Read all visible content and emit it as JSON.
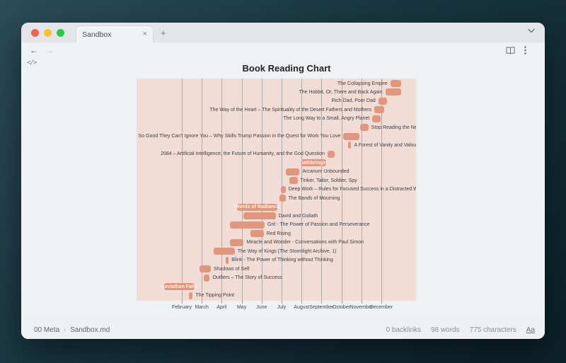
{
  "window": {
    "tab": {
      "title": "Sandbox"
    },
    "icons": {
      "tab_close": "×",
      "new_tab": "+",
      "back_arrow": "←",
      "forward_arrow": "→",
      "code_toggle": "</>",
      "breadcrumb_separator": "›"
    },
    "statusbar": {
      "breadcrumb_root": "00 Meta",
      "breadcrumb_file": "Sandbox.md",
      "backlinks": "0 backlinks",
      "words": "98 words",
      "characters": "775 characters",
      "font_toggle": "Aa"
    }
  },
  "chart_data": {
    "type": "gantt",
    "title": "Book Reading Chart",
    "time_unit": "months_since_jan_1",
    "axis": {
      "months": [
        "February",
        "March",
        "April",
        "May",
        "June",
        "July",
        "August",
        "September",
        "October",
        "November",
        "December"
      ],
      "range_months": [
        0,
        12.2
      ],
      "grid": true
    },
    "colors": {
      "bar": "#e1977d",
      "plot_background": "#f2ddd6",
      "label": "#3e4148",
      "inside_label": "#fdf1ec",
      "gridline": "#9a9ba0"
    },
    "books": [
      {
        "title": "The Collapsing Empire",
        "start": 11.45,
        "end": 12.0,
        "label_position": "left"
      },
      {
        "title": "The Hobbit, Or, There and Back Again",
        "start": 11.2,
        "end": 12.0,
        "label_position": "left"
      },
      {
        "title": "Rich Dad, Poor Dad",
        "start": 10.85,
        "end": 11.3,
        "label_position": "left"
      },
      {
        "title": "The Way of the Heart – The Spirituality of the Desert Fathers and Mothers",
        "start": 10.65,
        "end": 11.15,
        "label_position": "left"
      },
      {
        "title": "The Long Way to a Small, Angry Planet",
        "start": 10.55,
        "end": 10.95,
        "label_position": "left"
      },
      {
        "title": "Stop Reading the News",
        "start": 9.95,
        "end": 10.35,
        "label_position": "right"
      },
      {
        "title": "So Good They Can't Ignore You – Why Skills Trump Passion in the Quest for Work You Love",
        "start": 9.1,
        "end": 9.9,
        "label_position": "left"
      },
      {
        "title": "A Forest of Vanity and Valour",
        "start": 9.35,
        "end": 9.48,
        "label_position": "right"
      },
      {
        "title": "2084 – Artificial Intelligence, the Future of Humanity, and the God Question",
        "start": 8.3,
        "end": 8.65,
        "label_position": "left"
      },
      {
        "title": "Oathbringer",
        "start": 6.95,
        "end": 8.25,
        "label_position": "inside"
      },
      {
        "title": "Arcanum Unbounded",
        "start": 6.2,
        "end": 6.9,
        "label_position": "right"
      },
      {
        "title": "Tinker, Tailor, Soldier, Spy",
        "start": 6.4,
        "end": 6.8,
        "label_position": "right"
      },
      {
        "title": "Deep Work – Rules for Focused Success in a Distracted World",
        "start": 5.95,
        "end": 6.2,
        "label_position": "right"
      },
      {
        "title": "The Bands of Mourning",
        "start": 5.9,
        "end": 6.2,
        "label_position": "right"
      },
      {
        "title": "Words of Radiance",
        "start": 3.75,
        "end": 5.8,
        "label_position": "inside"
      },
      {
        "title": "David and Goliath",
        "start": 4.1,
        "end": 5.7,
        "label_position": "right"
      },
      {
        "title": "Grit - The Power of Passion and Perseverance",
        "start": 3.4,
        "end": 5.15,
        "label_position": "right"
      },
      {
        "title": "Red Rising",
        "start": 4.45,
        "end": 5.1,
        "label_position": "right"
      },
      {
        "title": "Miracle and Wonder - Conversations with Paul Simon",
        "start": 3.4,
        "end": 4.1,
        "label_position": "right"
      },
      {
        "title": "The Way of Kings (The Stormlight Archive, 1)",
        "start": 2.6,
        "end": 3.65,
        "label_position": "right"
      },
      {
        "title": "Blink - The Power of Thinking without Thinking",
        "start": 3.2,
        "end": 3.35,
        "label_position": "right"
      },
      {
        "title": "Shadows of Self",
        "start": 1.9,
        "end": 2.45,
        "label_position": "right"
      },
      {
        "title": "Outliers – The Story of Success",
        "start": 2.1,
        "end": 2.4,
        "label_position": "right"
      },
      {
        "title": "Leviathan Falls",
        "start": 0.1,
        "end": 1.65,
        "label_position": "inside"
      },
      {
        "title": "The Tipping Point",
        "start": 1.35,
        "end": 1.55,
        "label_position": "right"
      }
    ]
  }
}
